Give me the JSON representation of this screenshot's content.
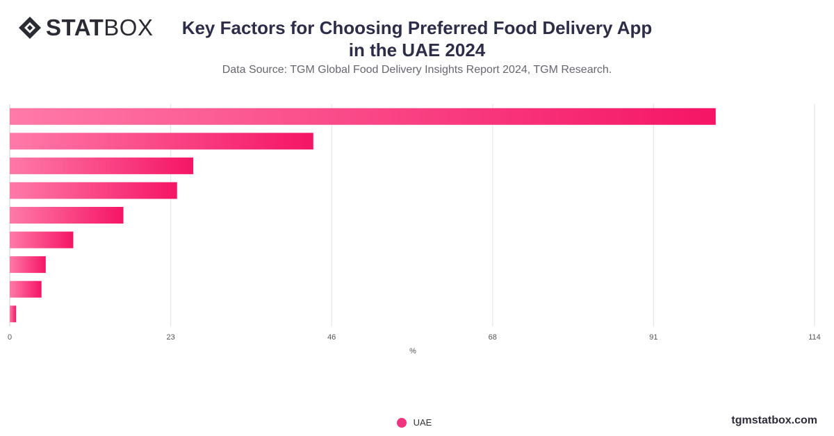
{
  "brand": {
    "bold": "STAT",
    "light": "BOX"
  },
  "title_line1": "Key Factors for Choosing Preferred Food Delivery App",
  "title_line2": "in the UAE  2024",
  "subtitle": "Data Source: TGM Global Food Delivery Insights Report 2024, TGM Research.",
  "footer": "tgmstatbox.com",
  "colors": {
    "bar_start": "#ff7aa8",
    "bar_end": "#f51565",
    "grid": "#e2e2e2"
  },
  "chart_data": {
    "type": "bar",
    "orientation": "horizontal",
    "title": "Key Factors for Choosing Preferred Food Delivery App in the UAE  2024",
    "xlabel": "%",
    "ylabel": "",
    "xlim": [
      0,
      114
    ],
    "ticks": [
      "0",
      "23",
      "46",
      "68",
      "91",
      "114"
    ],
    "tick_values": [
      0,
      22.8,
      45.6,
      68.4,
      91.2,
      114
    ],
    "categories": [
      "",
      "",
      "",
      "",
      "",
      "",
      "",
      "",
      ""
    ],
    "series": [
      {
        "name": "UAE",
        "values": [
          100,
          43,
          26,
          23.7,
          16.1,
          9,
          5.1,
          4.5,
          0.9
        ]
      }
    ],
    "legend": "bottom-center",
    "grid": true
  }
}
